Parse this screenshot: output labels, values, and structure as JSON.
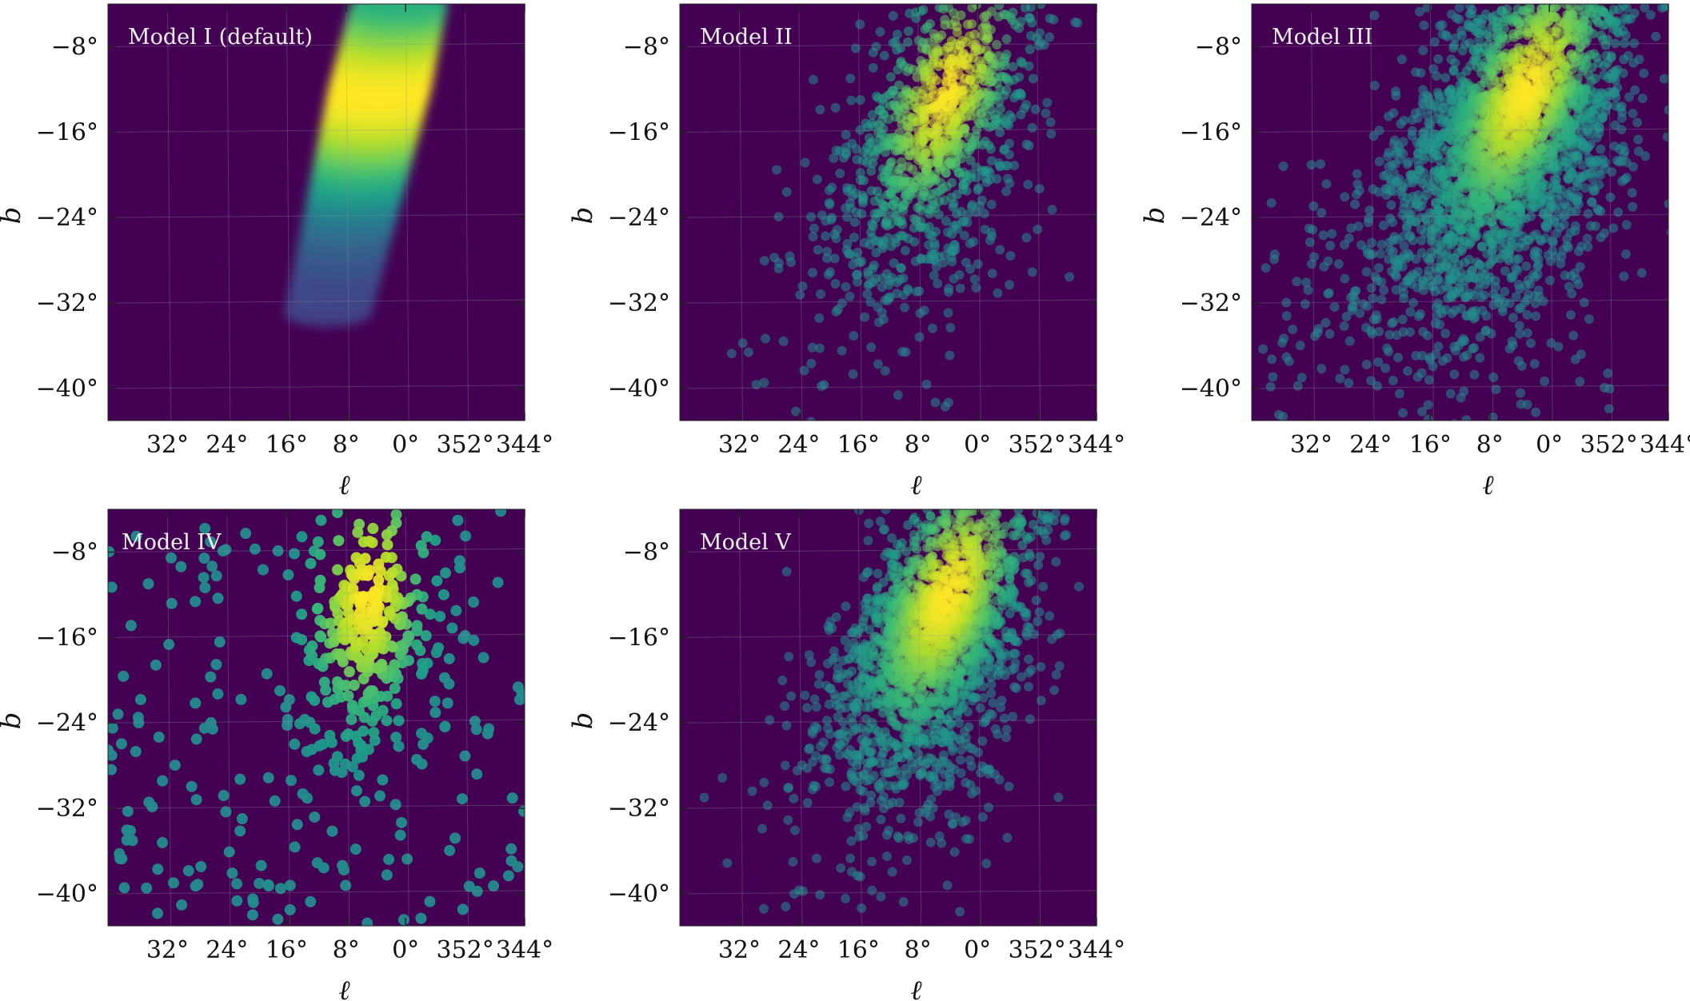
{
  "chart_data": [
    {
      "type": "heatmap",
      "title": "Model I (default)",
      "xlabel": "ℓ",
      "ylabel": "b",
      "xlim": [
        40,
        344
      ],
      "ylim": [
        -43,
        -4
      ],
      "xtick_labels": [
        "32°",
        "24°",
        "16°",
        "8°",
        "0°",
        "352°",
        "344°"
      ],
      "ytick_labels": [
        "−8°",
        "−16°",
        "−24°",
        "−32°",
        "−40°"
      ],
      "background_color": "#440154",
      "colormap": "viridis",
      "distribution": {
        "peak_l": 3.5,
        "peak_b": -12,
        "style": "smooth",
        "points": 0,
        "b_range": [
          -33,
          -4
        ],
        "tilt_deg_l_per_deg_b": 0.33,
        "half_width_l": 7
      }
    },
    {
      "type": "heatmap",
      "title": "Model II",
      "xlabel": "ℓ",
      "ylabel": "b",
      "xlim": [
        40,
        344
      ],
      "ylim": [
        -43,
        -4
      ],
      "xtick_labels": [
        "32°",
        "24°",
        "16°",
        "8°",
        "0°",
        "352°",
        "344°"
      ],
      "ytick_labels": [
        "−8°",
        "−16°",
        "−24°",
        "−32°",
        "−40°"
      ],
      "background_color": "#440154",
      "colormap": "viridis",
      "distribution": {
        "peak_l": 4,
        "peak_b": -12,
        "style": "points",
        "points": 1100,
        "seed": 2,
        "b_spread": 8,
        "tail_spread": 14,
        "tilt_deg_l_per_deg_b": 0.45,
        "half_width_l": 5
      }
    },
    {
      "type": "heatmap",
      "title": "Model III",
      "xlabel": "ℓ",
      "ylabel": "b",
      "xlim": [
        40,
        344
      ],
      "ylim": [
        -43,
        -4
      ],
      "xtick_labels": [
        "32°",
        "24°",
        "16°",
        "8°",
        "0°",
        "352°",
        "344°"
      ],
      "ytick_labels": [
        "−8°",
        "−16°",
        "−24°",
        "−32°",
        "−40°"
      ],
      "background_color": "#440154",
      "colormap": "viridis",
      "distribution": {
        "peak_l": 3,
        "peak_b": -12,
        "style": "points",
        "points": 2600,
        "seed": 3,
        "b_spread": 9,
        "tail_spread": 14,
        "tilt_deg_l_per_deg_b": 0.5,
        "half_width_l": 6.5
      }
    },
    {
      "type": "heatmap",
      "title": "Model IV",
      "xlabel": "ℓ",
      "ylabel": "b",
      "xlim": [
        40,
        344
      ],
      "ylim": [
        -43,
        -4
      ],
      "xtick_labels": [
        "32°",
        "24°",
        "16°",
        "8°",
        "0°",
        "352°",
        "344°"
      ],
      "ytick_labels": [
        "−8°",
        "−16°",
        "−24°",
        "−32°",
        "−40°"
      ],
      "background_color": "#440154",
      "colormap": "viridis",
      "distribution": {
        "peak_l": 5,
        "peak_b": -12,
        "style": "sparse",
        "points": 480,
        "seed": 4,
        "b_spread": 6,
        "tail_spread": 10,
        "tilt_deg_l_per_deg_b": 0.1,
        "half_width_l": 4
      }
    },
    {
      "type": "heatmap",
      "title": "Model V",
      "xlabel": "ℓ",
      "ylabel": "b",
      "xlim": [
        40,
        344
      ],
      "ylim": [
        -43,
        -4
      ],
      "xtick_labels": [
        "32°",
        "24°",
        "16°",
        "8°",
        "0°",
        "352°",
        "344°"
      ],
      "ytick_labels": [
        "−8°",
        "−16°",
        "−24°",
        "−32°",
        "−40°"
      ],
      "background_color": "#440154",
      "colormap": "viridis",
      "distribution": {
        "peak_l": 4,
        "peak_b": -12,
        "style": "points",
        "points": 2000,
        "seed": 5,
        "b_spread": 8,
        "tail_spread": 12,
        "tilt_deg_l_per_deg_b": 0.45,
        "half_width_l": 5
      }
    }
  ]
}
